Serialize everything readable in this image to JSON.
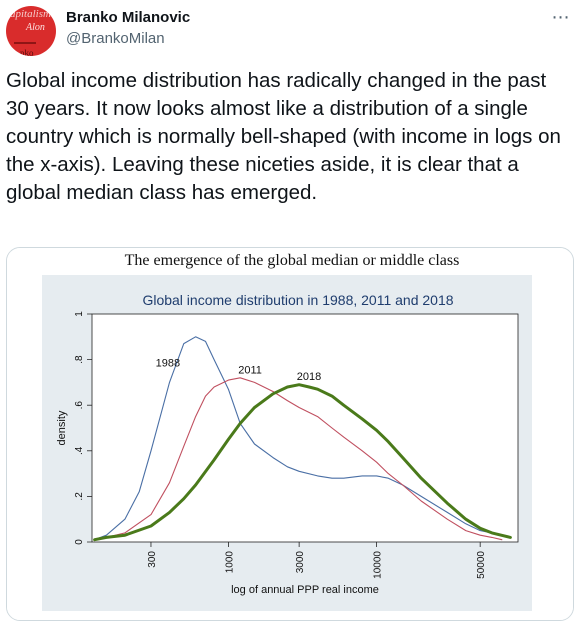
{
  "tweet": {
    "author_name": "Branko Milanovic",
    "author_handle": "@BrankoMilan",
    "avatar_text_1": "apitalism",
    "avatar_text_2": "Alon",
    "avatar_text_3": "nko",
    "more_icon": "ellipsis-icon",
    "text": "Global income distribution has radically changed in the past 30 years. It now looks almost like a distribution of a single country which is normally bell-shaped (with income in logs on the x-axis). Leaving these niceties aside, it is clear that a global median class has emerged."
  },
  "figure": {
    "heading": "The emergence of the global median or middle class"
  },
  "chart_data": {
    "type": "line",
    "title": "Global income distribution in 1988, 2011 and 2018",
    "xlabel": "log of annual PPP real income",
    "ylabel": "density",
    "x_scale": "log",
    "xlim": [
      120,
      90000
    ],
    "ylim": [
      0,
      1.0
    ],
    "xticks": [
      300,
      1000,
      3000,
      10000,
      50000
    ],
    "xtick_labels": [
      "300",
      "1000",
      "3000",
      "10000",
      "50000"
    ],
    "yticks": [
      0,
      0.2,
      0.4,
      0.6,
      0.8,
      1
    ],
    "ytick_labels": [
      "0",
      ".2",
      ".4",
      ".6",
      ".8",
      "1"
    ],
    "grid": false,
    "series": [
      {
        "name": "1988",
        "color": "#4a6fa5",
        "x": [
          125,
          150,
          200,
          250,
          300,
          400,
          500,
          600,
          700,
          800,
          1000,
          1200,
          1500,
          2000,
          2500,
          3000,
          4000,
          5000,
          6000,
          8000,
          10000,
          12000,
          15000,
          20000,
          30000,
          40000,
          50000,
          60000
        ],
        "y": [
          0.01,
          0.03,
          0.1,
          0.22,
          0.4,
          0.7,
          0.87,
          0.9,
          0.88,
          0.8,
          0.67,
          0.52,
          0.43,
          0.37,
          0.33,
          0.31,
          0.29,
          0.28,
          0.28,
          0.29,
          0.29,
          0.28,
          0.25,
          0.2,
          0.13,
          0.08,
          0.05,
          0.04
        ]
      },
      {
        "name": "2011",
        "color": "#c05060",
        "x": [
          125,
          150,
          200,
          300,
          400,
          500,
          600,
          700,
          800,
          1000,
          1200,
          1500,
          2000,
          2500,
          3000,
          4000,
          5000,
          6000,
          8000,
          10000,
          12000,
          15000,
          20000,
          30000,
          40000,
          50000,
          60000,
          70000
        ],
        "y": [
          0.01,
          0.02,
          0.04,
          0.12,
          0.26,
          0.42,
          0.55,
          0.64,
          0.68,
          0.71,
          0.72,
          0.7,
          0.66,
          0.62,
          0.59,
          0.55,
          0.5,
          0.46,
          0.4,
          0.35,
          0.3,
          0.25,
          0.18,
          0.1,
          0.05,
          0.03,
          0.02,
          0.01
        ]
      },
      {
        "name": "2018",
        "color": "#4a7a1a",
        "x": [
          125,
          150,
          200,
          300,
          400,
          500,
          600,
          800,
          1000,
          1200,
          1500,
          2000,
          2500,
          3000,
          3500,
          4000,
          5000,
          6000,
          8000,
          10000,
          12000,
          15000,
          20000,
          30000,
          40000,
          50000,
          60000,
          80000
        ],
        "y": [
          0.01,
          0.02,
          0.03,
          0.07,
          0.13,
          0.19,
          0.25,
          0.36,
          0.45,
          0.52,
          0.59,
          0.65,
          0.68,
          0.69,
          0.68,
          0.67,
          0.64,
          0.6,
          0.54,
          0.49,
          0.44,
          0.37,
          0.28,
          0.17,
          0.1,
          0.06,
          0.04,
          0.02
        ]
      }
    ]
  }
}
